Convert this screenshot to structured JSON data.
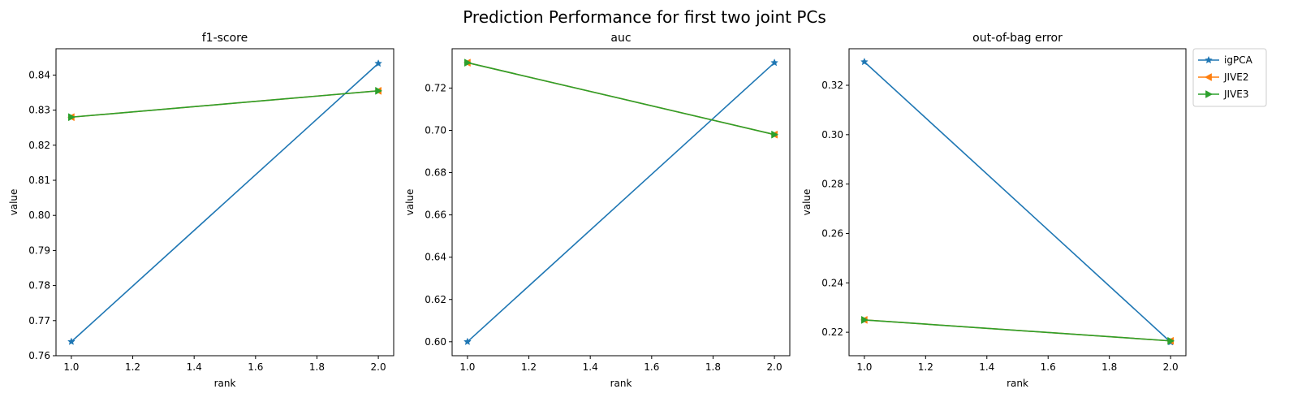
{
  "suptitle": "Prediction Performance for first two joint PCs",
  "chart_data": [
    {
      "type": "line",
      "title": "f1-score",
      "xlabel": "rank",
      "ylabel": "value",
      "x": [
        1.0,
        2.0
      ],
      "xlim": [
        0.95,
        2.05
      ],
      "ylim": [
        0.76,
        0.8475
      ],
      "xticks": [
        1.0,
        1.2,
        1.4,
        1.6,
        1.8,
        2.0
      ],
      "xtick_labels": [
        "1.0",
        "1.2",
        "1.4",
        "1.6",
        "1.8",
        "2.0"
      ],
      "yticks": [
        0.76,
        0.77,
        0.78,
        0.79,
        0.8,
        0.81,
        0.82,
        0.83,
        0.84
      ],
      "ytick_labels": [
        "0.76",
        "0.77",
        "0.78",
        "0.79",
        "0.80",
        "0.81",
        "0.82",
        "0.83",
        "0.84"
      ],
      "series": [
        {
          "name": "igPCA",
          "values": [
            0.764,
            0.8433
          ]
        },
        {
          "name": "JIVE2",
          "values": [
            0.828,
            0.8355
          ]
        },
        {
          "name": "JIVE3",
          "values": [
            0.828,
            0.8355
          ]
        }
      ]
    },
    {
      "type": "line",
      "title": "auc",
      "xlabel": "rank",
      "ylabel": "value",
      "x": [
        1.0,
        2.0
      ],
      "xlim": [
        0.95,
        2.05
      ],
      "ylim": [
        0.5934,
        0.7386
      ],
      "xticks": [
        1.0,
        1.2,
        1.4,
        1.6,
        1.8,
        2.0
      ],
      "xtick_labels": [
        "1.0",
        "1.2",
        "1.4",
        "1.6",
        "1.8",
        "2.0"
      ],
      "yticks": [
        0.6,
        0.62,
        0.64,
        0.66,
        0.68,
        0.7,
        0.72
      ],
      "ytick_labels": [
        "0.60",
        "0.62",
        "0.64",
        "0.66",
        "0.68",
        "0.70",
        "0.72"
      ],
      "series": [
        {
          "name": "igPCA",
          "values": [
            0.6,
            0.732
          ]
        },
        {
          "name": "JIVE2",
          "values": [
            0.732,
            0.698
          ]
        },
        {
          "name": "JIVE3",
          "values": [
            0.732,
            0.698
          ]
        }
      ]
    },
    {
      "type": "line",
      "title": "out-of-bag error",
      "xlabel": "rank",
      "ylabel": "value",
      "x": [
        1.0,
        2.0
      ],
      "xlim": [
        0.95,
        2.05
      ],
      "ylim": [
        0.2105,
        0.3348
      ],
      "xticks": [
        1.0,
        1.2,
        1.4,
        1.6,
        1.8,
        2.0
      ],
      "xtick_labels": [
        "1.0",
        "1.2",
        "1.4",
        "1.6",
        "1.8",
        "2.0"
      ],
      "yticks": [
        0.22,
        0.24,
        0.26,
        0.28,
        0.3,
        0.32
      ],
      "ytick_labels": [
        "0.22",
        "0.24",
        "0.26",
        "0.28",
        "0.30",
        "0.32"
      ],
      "series": [
        {
          "name": "igPCA",
          "values": [
            0.3295,
            0.216
          ]
        },
        {
          "name": "JIVE2",
          "values": [
            0.225,
            0.2165
          ]
        },
        {
          "name": "JIVE3",
          "values": [
            0.225,
            0.2165
          ]
        }
      ]
    }
  ],
  "legend": {
    "placement": "outside-right",
    "entries": [
      {
        "label": "igPCA",
        "color": "#1f77b4",
        "marker": "star"
      },
      {
        "label": "JIVE2",
        "color": "#ff7f0e",
        "marker": "triangle-left"
      },
      {
        "label": "JIVE3",
        "color": "#2ca02c",
        "marker": "triangle-right"
      }
    ]
  },
  "series_styles": {
    "igPCA": {
      "color": "#1f77b4",
      "marker": "star"
    },
    "JIVE2": {
      "color": "#ff7f0e",
      "marker": "triangle-left"
    },
    "JIVE3": {
      "color": "#2ca02c",
      "marker": "triangle-right"
    }
  }
}
